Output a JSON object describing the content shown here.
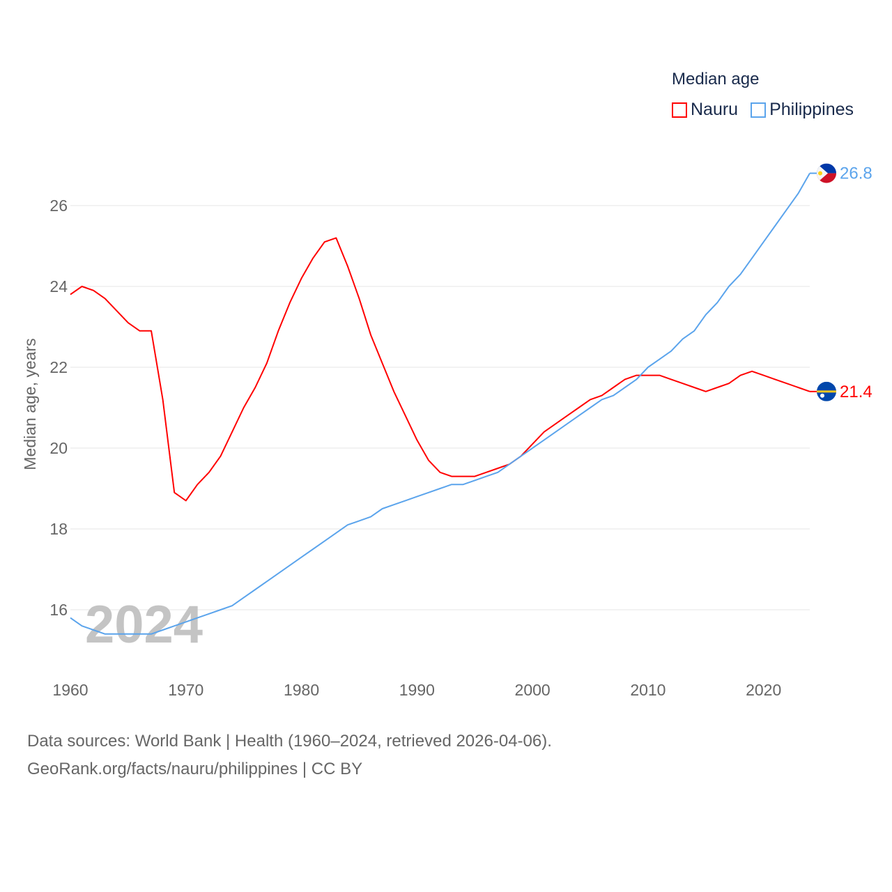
{
  "chart_data": {
    "type": "line",
    "title": "Median age",
    "xlabel": "",
    "ylabel": "Median age, years",
    "xlim": [
      1960,
      2024
    ],
    "ylim": [
      14.9,
      27.4
    ],
    "xticks": [
      1960,
      1970,
      1980,
      1990,
      2000,
      2010,
      2020
    ],
    "yticks": [
      16,
      18,
      20,
      22,
      24,
      26
    ],
    "grid": true,
    "legend_position": "top-right",
    "year_watermark": "2024",
    "x": [
      1960,
      1961,
      1962,
      1963,
      1964,
      1965,
      1966,
      1967,
      1968,
      1969,
      1970,
      1971,
      1972,
      1973,
      1974,
      1975,
      1976,
      1977,
      1978,
      1979,
      1980,
      1981,
      1982,
      1983,
      1984,
      1985,
      1986,
      1987,
      1988,
      1989,
      1990,
      1991,
      1992,
      1993,
      1994,
      1995,
      1996,
      1997,
      1998,
      1999,
      2000,
      2001,
      2002,
      2003,
      2004,
      2005,
      2006,
      2007,
      2008,
      2009,
      2010,
      2011,
      2012,
      2013,
      2014,
      2015,
      2016,
      2017,
      2018,
      2019,
      2020,
      2021,
      2022,
      2023,
      2024
    ],
    "series": [
      {
        "name": "Nauru",
        "color": "#ff0000",
        "end_label": "21.4",
        "values": [
          23.8,
          24.0,
          23.9,
          23.7,
          23.4,
          23.1,
          22.9,
          22.9,
          21.2,
          18.9,
          18.7,
          19.1,
          19.4,
          19.8,
          20.4,
          21.0,
          21.5,
          22.1,
          22.9,
          23.6,
          24.2,
          24.7,
          25.1,
          25.2,
          24.5,
          23.7,
          22.8,
          22.1,
          21.4,
          20.8,
          20.2,
          19.7,
          19.4,
          19.3,
          19.3,
          19.3,
          19.4,
          19.5,
          19.6,
          19.8,
          20.1,
          20.4,
          20.6,
          20.8,
          21.0,
          21.2,
          21.3,
          21.5,
          21.7,
          21.8,
          21.8,
          21.8,
          21.7,
          21.6,
          21.5,
          21.4,
          21.5,
          21.6,
          21.8,
          21.9,
          21.8,
          21.7,
          21.6,
          21.5,
          21.4
        ]
      },
      {
        "name": "Philippines",
        "color": "#5ba4ec",
        "end_label": "26.8",
        "values": [
          15.8,
          15.6,
          15.5,
          15.4,
          15.4,
          15.4,
          15.4,
          15.4,
          15.5,
          15.6,
          15.7,
          15.8,
          15.9,
          16.0,
          16.1,
          16.3,
          16.5,
          16.7,
          16.9,
          17.1,
          17.3,
          17.5,
          17.7,
          17.9,
          18.1,
          18.2,
          18.3,
          18.5,
          18.6,
          18.7,
          18.8,
          18.9,
          19.0,
          19.1,
          19.1,
          19.2,
          19.3,
          19.4,
          19.6,
          19.8,
          20.0,
          20.2,
          20.4,
          20.6,
          20.8,
          21.0,
          21.2,
          21.3,
          21.5,
          21.7,
          22.0,
          22.2,
          22.4,
          22.7,
          22.9,
          23.3,
          23.6,
          24.0,
          24.3,
          24.7,
          25.1,
          25.5,
          25.9,
          26.3,
          26.8
        ]
      }
    ]
  },
  "legend": {
    "title": "Median age",
    "items": [
      "Nauru",
      "Philippines"
    ]
  },
  "footer": {
    "line1": "Data sources: World Bank | Health (1960–2024, retrieved 2026-04-06).",
    "line2": "GeoRank.org/facts/nauru/philippines | CC BY"
  }
}
